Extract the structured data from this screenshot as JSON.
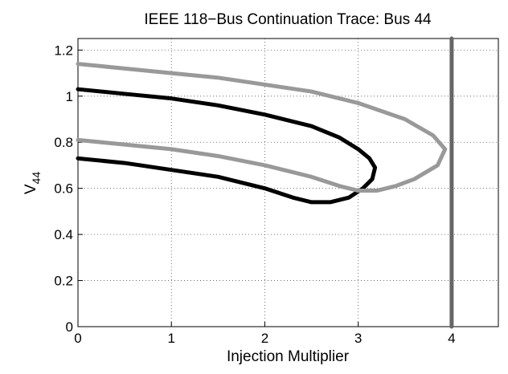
{
  "chart_data": {
    "type": "line",
    "title": "IEEE 118−Bus Continuation Trace: Bus 44",
    "xlabel": "Injection Multiplier",
    "ylabel": "V",
    "ylabel_sub": "44",
    "xlim": [
      0,
      4.5
    ],
    "ylim": [
      0,
      1.25
    ],
    "xticks": [
      0,
      1,
      2,
      3,
      4
    ],
    "yticks": [
      0,
      0.2,
      0.4,
      0.6,
      0.8,
      1,
      1.2
    ],
    "grid": true,
    "series": [
      {
        "color": "#000000",
        "x": [
          0,
          0.5,
          1,
          1.5,
          2,
          2.5,
          2.8,
          3.0,
          3.12,
          3.18,
          3.15,
          3.05,
          2.9,
          2.7,
          2.5,
          2.3,
          2.0,
          1.5,
          1.0,
          0.5,
          0
        ],
        "values": [
          1.03,
          1.01,
          0.99,
          0.96,
          0.92,
          0.87,
          0.82,
          0.77,
          0.73,
          0.69,
          0.64,
          0.6,
          0.56,
          0.54,
          0.54,
          0.56,
          0.6,
          0.65,
          0.68,
          0.71,
          0.73
        ]
      },
      {
        "color": "#999999",
        "x": [
          0,
          0.5,
          1,
          1.5,
          2,
          2.5,
          3,
          3.5,
          3.8,
          3.93,
          3.85,
          3.6,
          3.4,
          3.2,
          3.0,
          2.8,
          2.5,
          2.0,
          1.5,
          1.0,
          0.5,
          0
        ],
        "values": [
          1.14,
          1.12,
          1.1,
          1.08,
          1.05,
          1.02,
          0.97,
          0.9,
          0.83,
          0.77,
          0.7,
          0.64,
          0.61,
          0.59,
          0.59,
          0.61,
          0.65,
          0.7,
          0.74,
          0.77,
          0.79,
          0.81
        ]
      },
      {
        "color": "#666666",
        "x": [
          4,
          4
        ],
        "values": [
          0,
          1.25
        ]
      }
    ]
  }
}
